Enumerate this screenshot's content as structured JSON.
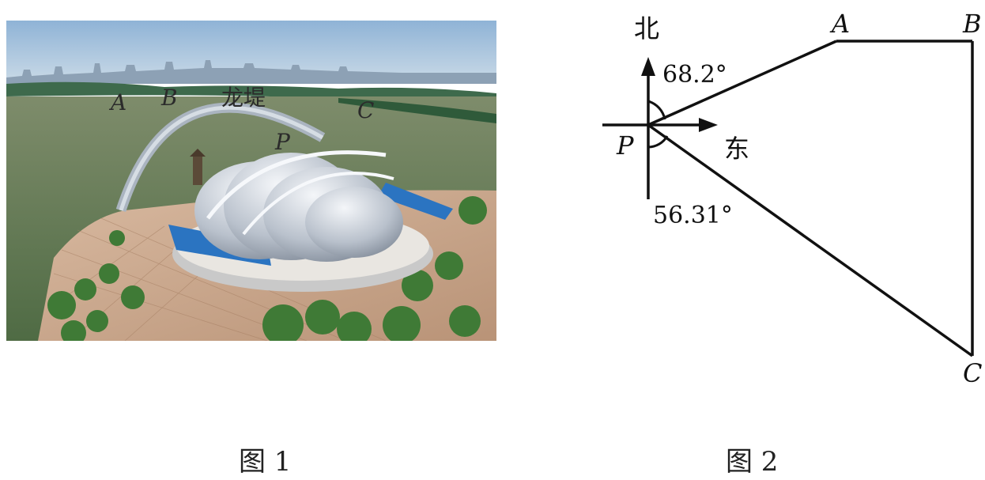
{
  "figure1": {
    "caption": "图 1",
    "labels": {
      "A": "A",
      "B": "B",
      "dike": "龙堤",
      "C": "C",
      "P": "P"
    }
  },
  "figure2": {
    "caption": "图 2",
    "points": {
      "A": "A",
      "B": "B",
      "C": "C",
      "P": "P"
    },
    "north_label": "北",
    "east_label": "东",
    "angle_north": "68.2°",
    "angle_south": "56.31°"
  }
}
